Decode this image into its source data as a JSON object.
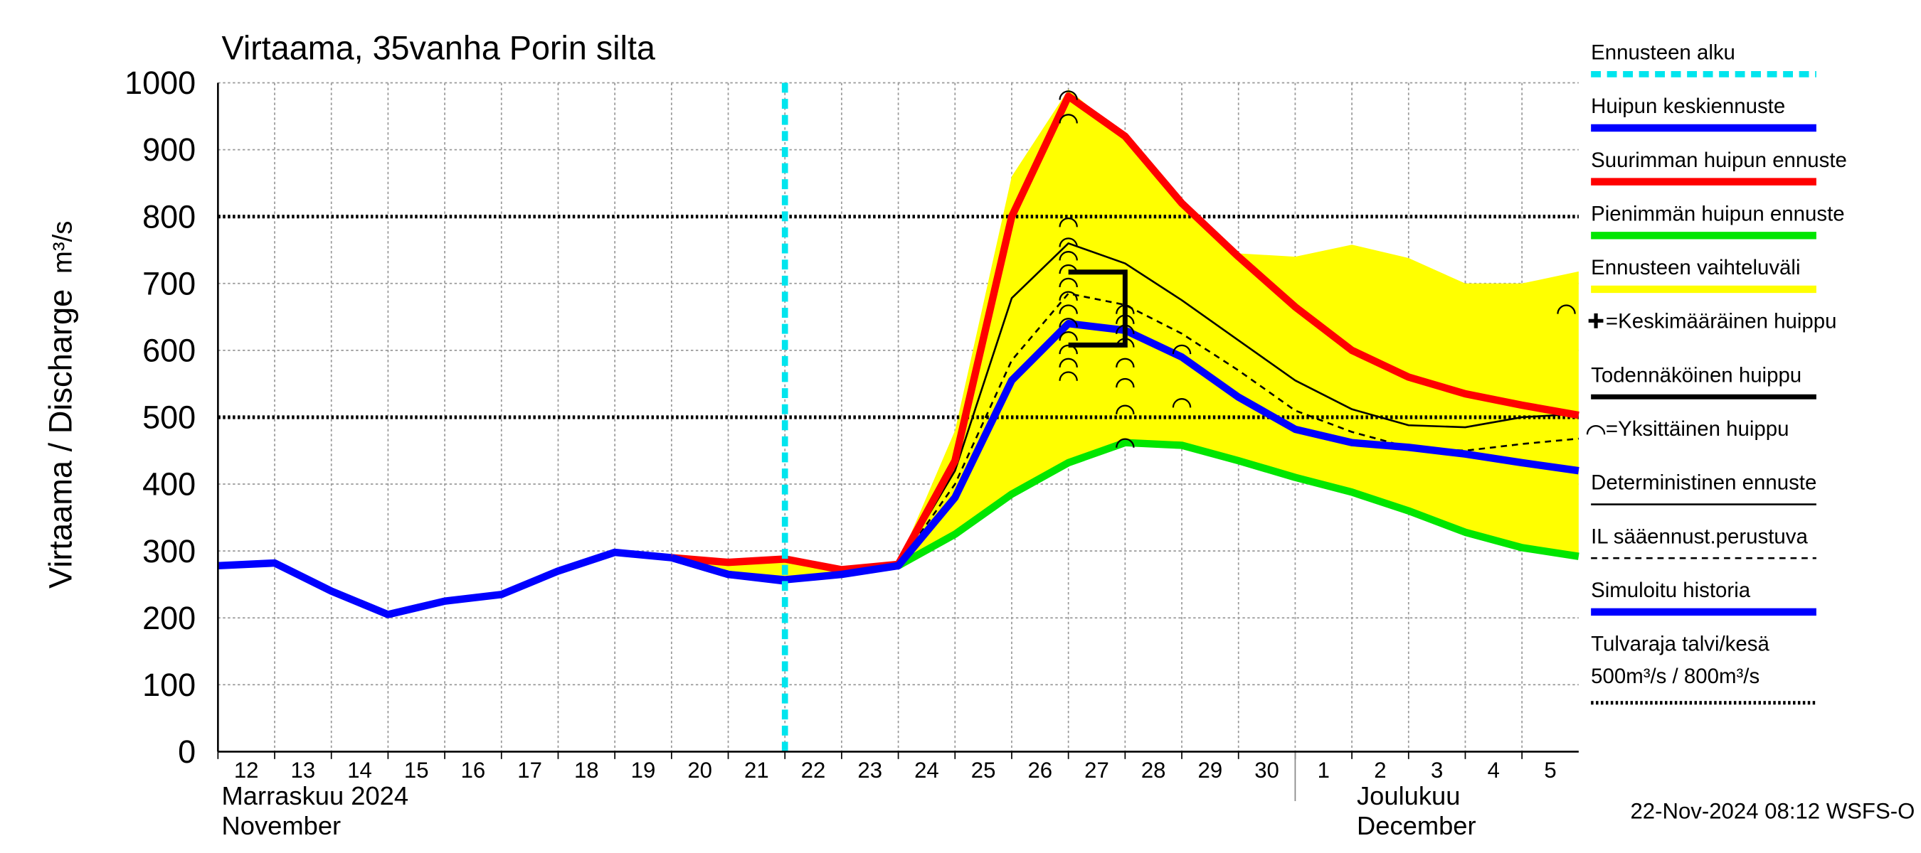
{
  "chart_data": {
    "type": "line",
    "title": "Virtaama, 35vanha Porin silta",
    "y_label": "Virtaama / Discharge",
    "y_unit": "m³/s",
    "x": [
      "2024-11-12",
      "2024-11-13",
      "2024-11-14",
      "2024-11-15",
      "2024-11-16",
      "2024-11-17",
      "2024-11-18",
      "2024-11-19",
      "2024-11-20",
      "2024-11-21",
      "2024-11-22",
      "2024-11-23",
      "2024-11-24",
      "2024-11-25",
      "2024-11-26",
      "2024-11-27",
      "2024-11-28",
      "2024-11-29",
      "2024-11-30",
      "2024-12-01",
      "2024-12-02",
      "2024-12-03",
      "2024-12-04",
      "2024-12-05",
      "2024-12-06"
    ],
    "xticks": [
      {
        "value": "2024-11-12",
        "label": "12"
      },
      {
        "value": "2024-11-13",
        "label": "13"
      },
      {
        "value": "2024-11-14",
        "label": "14"
      },
      {
        "value": "2024-11-15",
        "label": "15"
      },
      {
        "value": "2024-11-16",
        "label": "16"
      },
      {
        "value": "2024-11-17",
        "label": "17"
      },
      {
        "value": "2024-11-18",
        "label": "18"
      },
      {
        "value": "2024-11-19",
        "label": "19"
      },
      {
        "value": "2024-11-20",
        "label": "20"
      },
      {
        "value": "2024-11-21",
        "label": "21"
      },
      {
        "value": "2024-11-22",
        "label": "22"
      },
      {
        "value": "2024-11-23",
        "label": "23"
      },
      {
        "value": "2024-11-24",
        "label": "24"
      },
      {
        "value": "2024-11-25",
        "label": "25"
      },
      {
        "value": "2024-11-26",
        "label": "26"
      },
      {
        "value": "2024-11-27",
        "label": "27"
      },
      {
        "value": "2024-11-28",
        "label": "28"
      },
      {
        "value": "2024-11-29",
        "label": "29"
      },
      {
        "value": "2024-11-30",
        "label": "30"
      },
      {
        "value": "2024-12-01",
        "label": "1"
      },
      {
        "value": "2024-12-02",
        "label": "2"
      },
      {
        "value": "2024-12-03",
        "label": "3"
      },
      {
        "value": "2024-12-04",
        "label": "4"
      },
      {
        "value": "2024-12-05",
        "label": "5"
      }
    ],
    "months": [
      {
        "name": "Marraskuu 2024",
        "name_en": "November",
        "start": "2024-11-12"
      },
      {
        "name": "Joulukuu",
        "name_en": "December",
        "start": "2024-12-01"
      }
    ],
    "ylim": [
      0,
      1000
    ],
    "yticks": [
      0,
      100,
      200,
      300,
      400,
      500,
      600,
      700,
      800,
      900,
      1000
    ],
    "grid": true,
    "forecast_start": {
      "name": "Ennusteen alku",
      "x": "2024-11-22",
      "color": "#00e5ee"
    },
    "band": {
      "name": "Ennusteen vaihteluväli",
      "color": "#ffff00",
      "upper": [
        null,
        null,
        null,
        null,
        null,
        null,
        null,
        null,
        292,
        287,
        292,
        275,
        282,
        480,
        860,
        990,
        920,
        820,
        745,
        740,
        758,
        738,
        700,
        700,
        718
      ],
      "lower": [
        null,
        null,
        null,
        null,
        null,
        null,
        null,
        null,
        288,
        262,
        255,
        265,
        278,
        325,
        385,
        432,
        462,
        458,
        435,
        410,
        388,
        360,
        328,
        305,
        292
      ]
    },
    "series": [
      {
        "name": "Huipun keskiennuste",
        "color": "#0000ff",
        "width": 6,
        "values": [
          null,
          null,
          null,
          null,
          null,
          null,
          null,
          null,
          290,
          265,
          257,
          265,
          278,
          380,
          555,
          640,
          630,
          590,
          530,
          482,
          462,
          455,
          445,
          432,
          420
        ]
      },
      {
        "name": "Suurimman huipun ennuste",
        "color": "#ff0000",
        "width": 6,
        "values": [
          null,
          null,
          null,
          null,
          null,
          null,
          null,
          null,
          290,
          283,
          288,
          272,
          280,
          435,
          800,
          980,
          920,
          820,
          740,
          665,
          600,
          560,
          535,
          518,
          503
        ]
      },
      {
        "name": "Pienimmän huipun ennuste",
        "color": "#00e600",
        "width": 6,
        "values": [
          null,
          null,
          null,
          null,
          null,
          null,
          null,
          null,
          null,
          null,
          null,
          null,
          278,
          325,
          385,
          432,
          462,
          458,
          435,
          410,
          388,
          360,
          328,
          305,
          292
        ]
      },
      {
        "name": "Deterministinen ennuste",
        "color": "#000000",
        "width": 1.5,
        "values": [
          null,
          null,
          null,
          null,
          null,
          null,
          null,
          null,
          290,
          268,
          260,
          268,
          278,
          420,
          678,
          760,
          730,
          675,
          615,
          555,
          512,
          488,
          485,
          500,
          505
        ]
      },
      {
        "name": "IL sääennust.perustuva",
        "color": "#000000",
        "width": 1.5,
        "dash": true,
        "values": [
          null,
          null,
          null,
          null,
          null,
          null,
          null,
          null,
          290,
          282,
          285,
          270,
          280,
          400,
          585,
          685,
          668,
          625,
          570,
          510,
          478,
          455,
          450,
          460,
          468
        ]
      },
      {
        "name": "Simuloitu historia",
        "color": "#0000ff",
        "width": 6,
        "values": [
          278,
          282,
          240,
          205,
          225,
          235,
          270,
          298,
          290,
          265,
          255,
          null,
          null,
          null,
          null,
          null,
          null,
          null,
          null,
          null,
          null,
          null,
          null,
          null,
          null
        ]
      }
    ],
    "mean_peak": {
      "name": "=Keskimääräinen huippu"
    },
    "probable_peak": {
      "name": "Todennäköinen huippu",
      "x": "2024-11-27",
      "low": 608,
      "high": 717
    },
    "single_peaks": {
      "name": "=Yksittäinen huippu",
      "x": [
        "2024-11-27",
        "2024-11-27",
        "2024-11-27",
        "2024-11-27",
        "2024-11-27",
        "2024-11-27",
        "2024-11-27",
        "2024-11-27",
        "2024-11-27",
        "2024-11-27",
        "2024-11-27",
        "2024-11-27",
        "2024-11-27",
        "2024-11-27",
        "2024-11-28",
        "2024-11-28",
        "2024-11-28",
        "2024-11-28",
        "2024-11-28",
        "2024-11-28",
        "2024-11-28",
        "2024-11-28",
        "2024-11-29",
        "2024-11-29",
        "2024-12-06"
      ],
      "values": [
        980,
        945,
        790,
        760,
        740,
        720,
        700,
        680,
        660,
        640,
        620,
        600,
        580,
        560,
        660,
        645,
        630,
        610,
        580,
        550,
        510,
        460,
        600,
        520,
        660
      ]
    },
    "flood_limits": {
      "name": "Tulvaraja talvi/kesä",
      "note": " 500m³/s / 800m³/s",
      "values": [
        500,
        800
      ]
    },
    "timestamp": "22-Nov-2024 08:12 WSFS-O"
  }
}
